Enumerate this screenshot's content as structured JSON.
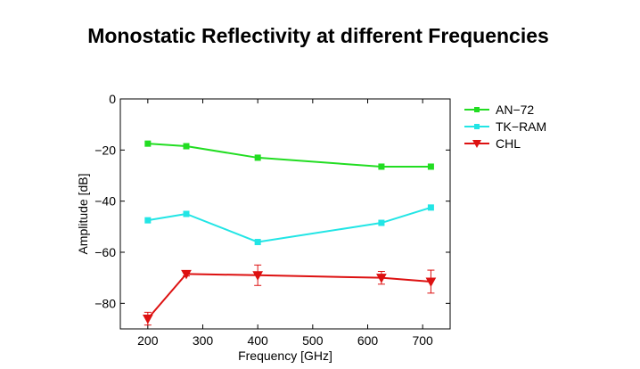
{
  "chart_data": {
    "type": "line",
    "title": "Monostatic Reflectivity at different Frequencies",
    "xlabel": "Frequency [GHz]",
    "ylabel": "Amplitude [dB]",
    "xlim": [
      150,
      750
    ],
    "ylim": [
      -90,
      0
    ],
    "xticks": [
      200,
      300,
      400,
      500,
      600,
      700
    ],
    "yticks": [
      0,
      -20,
      -40,
      -60,
      -80
    ],
    "grid": false,
    "legend_position": "outside-right",
    "series": [
      {
        "name": "AN-72",
        "color": "#22dd22",
        "marker": "square",
        "x": [
          200,
          270,
          400,
          625,
          715
        ],
        "y": [
          -17.5,
          -18.5,
          -23,
          -26.5,
          -26.5
        ]
      },
      {
        "name": "TK-RAM",
        "color": "#22e5e5",
        "marker": "square",
        "x": [
          200,
          270,
          400,
          625,
          715
        ],
        "y": [
          -47.5,
          -45,
          -56,
          -48.5,
          -42.5
        ]
      },
      {
        "name": "CHL",
        "color": "#dd1111",
        "marker": "triangle-down",
        "x": [
          200,
          270,
          400,
          625,
          715
        ],
        "y": [
          -86,
          -68.5,
          -69,
          -70,
          -71.5
        ],
        "err": [
          2.5,
          0.8,
          4,
          2.5,
          4.5
        ]
      }
    ]
  }
}
